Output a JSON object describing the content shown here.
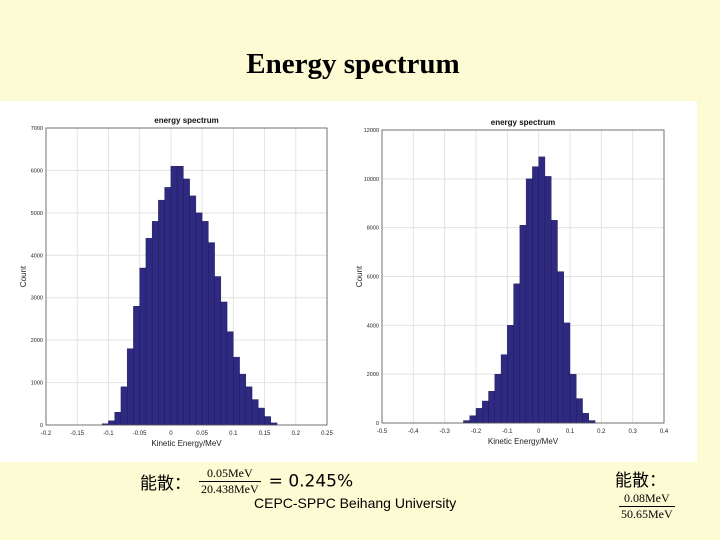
{
  "slide": {
    "title": "Energy spectrum",
    "footer": "CEPC-SPPC Beihang University"
  },
  "formulas": [
    {
      "label": "能散：",
      "numerator": "0.05MeV",
      "denominator": "20.438MeV",
      "result": "= 0.245%"
    },
    {
      "label": "能散：",
      "numerator": "0.08MeV",
      "denominator": "50.65MeV"
    }
  ],
  "colors": {
    "bar": "#2e2a82",
    "background": "#fdfbd3",
    "panel": "#ffffff"
  },
  "chart_data": [
    {
      "type": "bar",
      "title": "energy spectrum",
      "xlabel": "Kinetic Energy/MeV",
      "ylabel": "Count",
      "xlim": [
        -0.2,
        0.25
      ],
      "ylim": [
        0,
        7000
      ],
      "xticks": [
        "-0.2",
        "-0.15",
        "-0.1",
        "-0.05",
        "0",
        "0.05",
        "0.1",
        "0.15",
        "0.2",
        "0.25"
      ],
      "yticks": [
        "0",
        "1000",
        "2000",
        "3000",
        "4000",
        "5000",
        "6000",
        "7000"
      ],
      "bin_width": 0.01,
      "bin_starts": [
        -0.11,
        -0.1,
        -0.09,
        -0.08,
        -0.07,
        -0.06,
        -0.05,
        -0.04,
        -0.03,
        -0.02,
        -0.01,
        0,
        0.01,
        0.02,
        0.03,
        0.04,
        0.05,
        0.06,
        0.07,
        0.08,
        0.09,
        0.1,
        0.11,
        0.12,
        0.13,
        0.14,
        0.15,
        0.16
      ],
      "values": [
        30,
        100,
        300,
        900,
        1800,
        2800,
        3700,
        4400,
        4800,
        5300,
        5600,
        6100,
        6100,
        5800,
        5400,
        5000,
        4800,
        4300,
        3500,
        2900,
        2200,
        1600,
        1200,
        900,
        600,
        400,
        200,
        50
      ],
      "grid": true
    },
    {
      "type": "bar",
      "title": "energy spectrum",
      "xlabel": "Kinetic Energy/MeV",
      "ylabel": "Count",
      "xlim": [
        -0.5,
        0.4
      ],
      "ylim": [
        0,
        12000
      ],
      "xticks": [
        "-0.5",
        "-0.4",
        "-0.3",
        "-0.2",
        "-0.1",
        "0",
        "0.1",
        "0.2",
        "0.3",
        "0.4"
      ],
      "yticks": [
        "0",
        "2000",
        "4000",
        "6000",
        "8000",
        "10000",
        "12000"
      ],
      "bin_width": 0.02,
      "bin_starts": [
        -0.24,
        -0.22,
        -0.2,
        -0.18,
        -0.16,
        -0.14,
        -0.12,
        -0.1,
        -0.08,
        -0.06,
        -0.04,
        -0.02,
        0,
        0.02,
        0.04,
        0.06,
        0.08,
        0.1,
        0.12,
        0.14,
        0.16
      ],
      "values": [
        100,
        300,
        600,
        900,
        1300,
        2000,
        2800,
        4000,
        5700,
        8100,
        10000,
        10500,
        10900,
        10100,
        8300,
        6200,
        4100,
        2000,
        1000,
        400,
        100
      ],
      "grid": true
    }
  ]
}
